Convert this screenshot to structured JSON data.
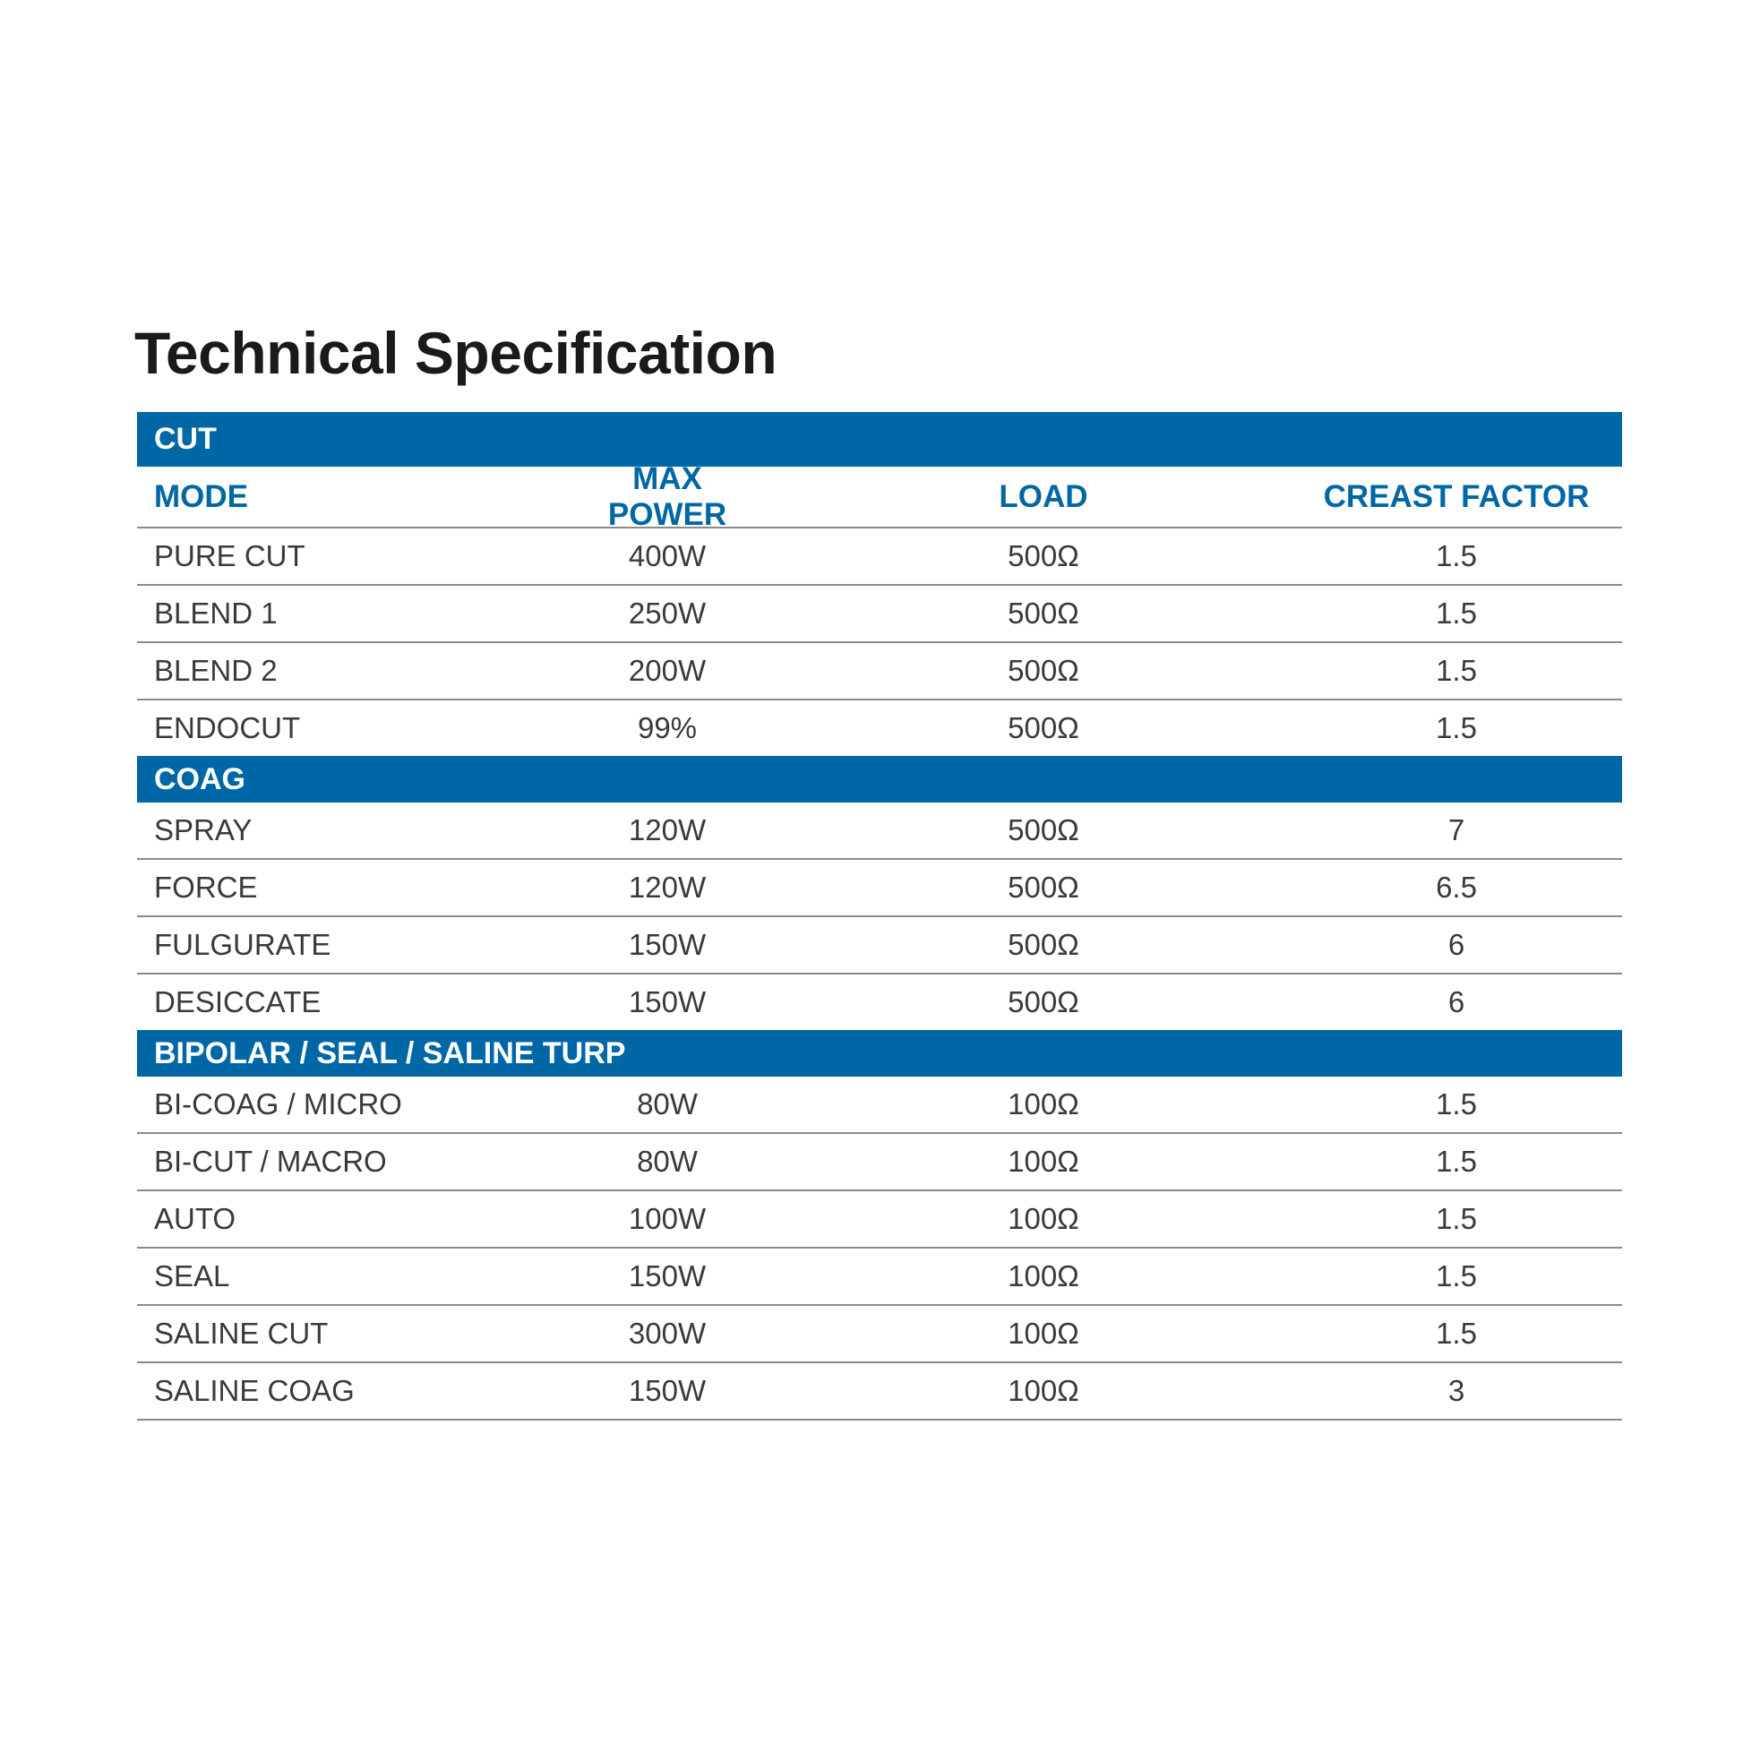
{
  "title": "Technical Specification",
  "columns": [
    "MODE",
    "MAX POWER",
    "LOAD",
    "CREAST FACTOR"
  ],
  "colors": {
    "band": "#0067a6",
    "header_text": "#0067a6"
  },
  "sections": [
    {
      "label": "CUT",
      "rows": [
        [
          "PURE CUT",
          "400W",
          "500Ω",
          "1.5"
        ],
        [
          "BLEND 1",
          "250W",
          "500Ω",
          "1.5"
        ],
        [
          "BLEND 2",
          "200W",
          "500Ω",
          "1.5"
        ],
        [
          "ENDOCUT",
          "99%",
          "500Ω",
          "1.5"
        ]
      ]
    },
    {
      "label": "COAG",
      "rows": [
        [
          "SPRAY",
          "120W",
          "500Ω",
          "7"
        ],
        [
          "FORCE",
          "120W",
          "500Ω",
          "6.5"
        ],
        [
          "FULGURATE",
          "150W",
          "500Ω",
          "6"
        ],
        [
          "DESICCATE",
          "150W",
          "500Ω",
          "6"
        ]
      ]
    },
    {
      "label": "BIPOLAR / SEAL / SALINE TURP",
      "rows": [
        [
          "BI-COAG / MICRO",
          "80W",
          "100Ω",
          "1.5"
        ],
        [
          "BI-CUT / MACRO",
          "80W",
          "100Ω",
          "1.5"
        ],
        [
          "AUTO",
          "100W",
          "100Ω",
          "1.5"
        ],
        [
          "SEAL",
          "150W",
          "100Ω",
          "1.5"
        ],
        [
          "SALINE CUT",
          "300W",
          "100Ω",
          "1.5"
        ],
        [
          "SALINE COAG",
          "150W",
          "100Ω",
          "3"
        ]
      ]
    }
  ]
}
